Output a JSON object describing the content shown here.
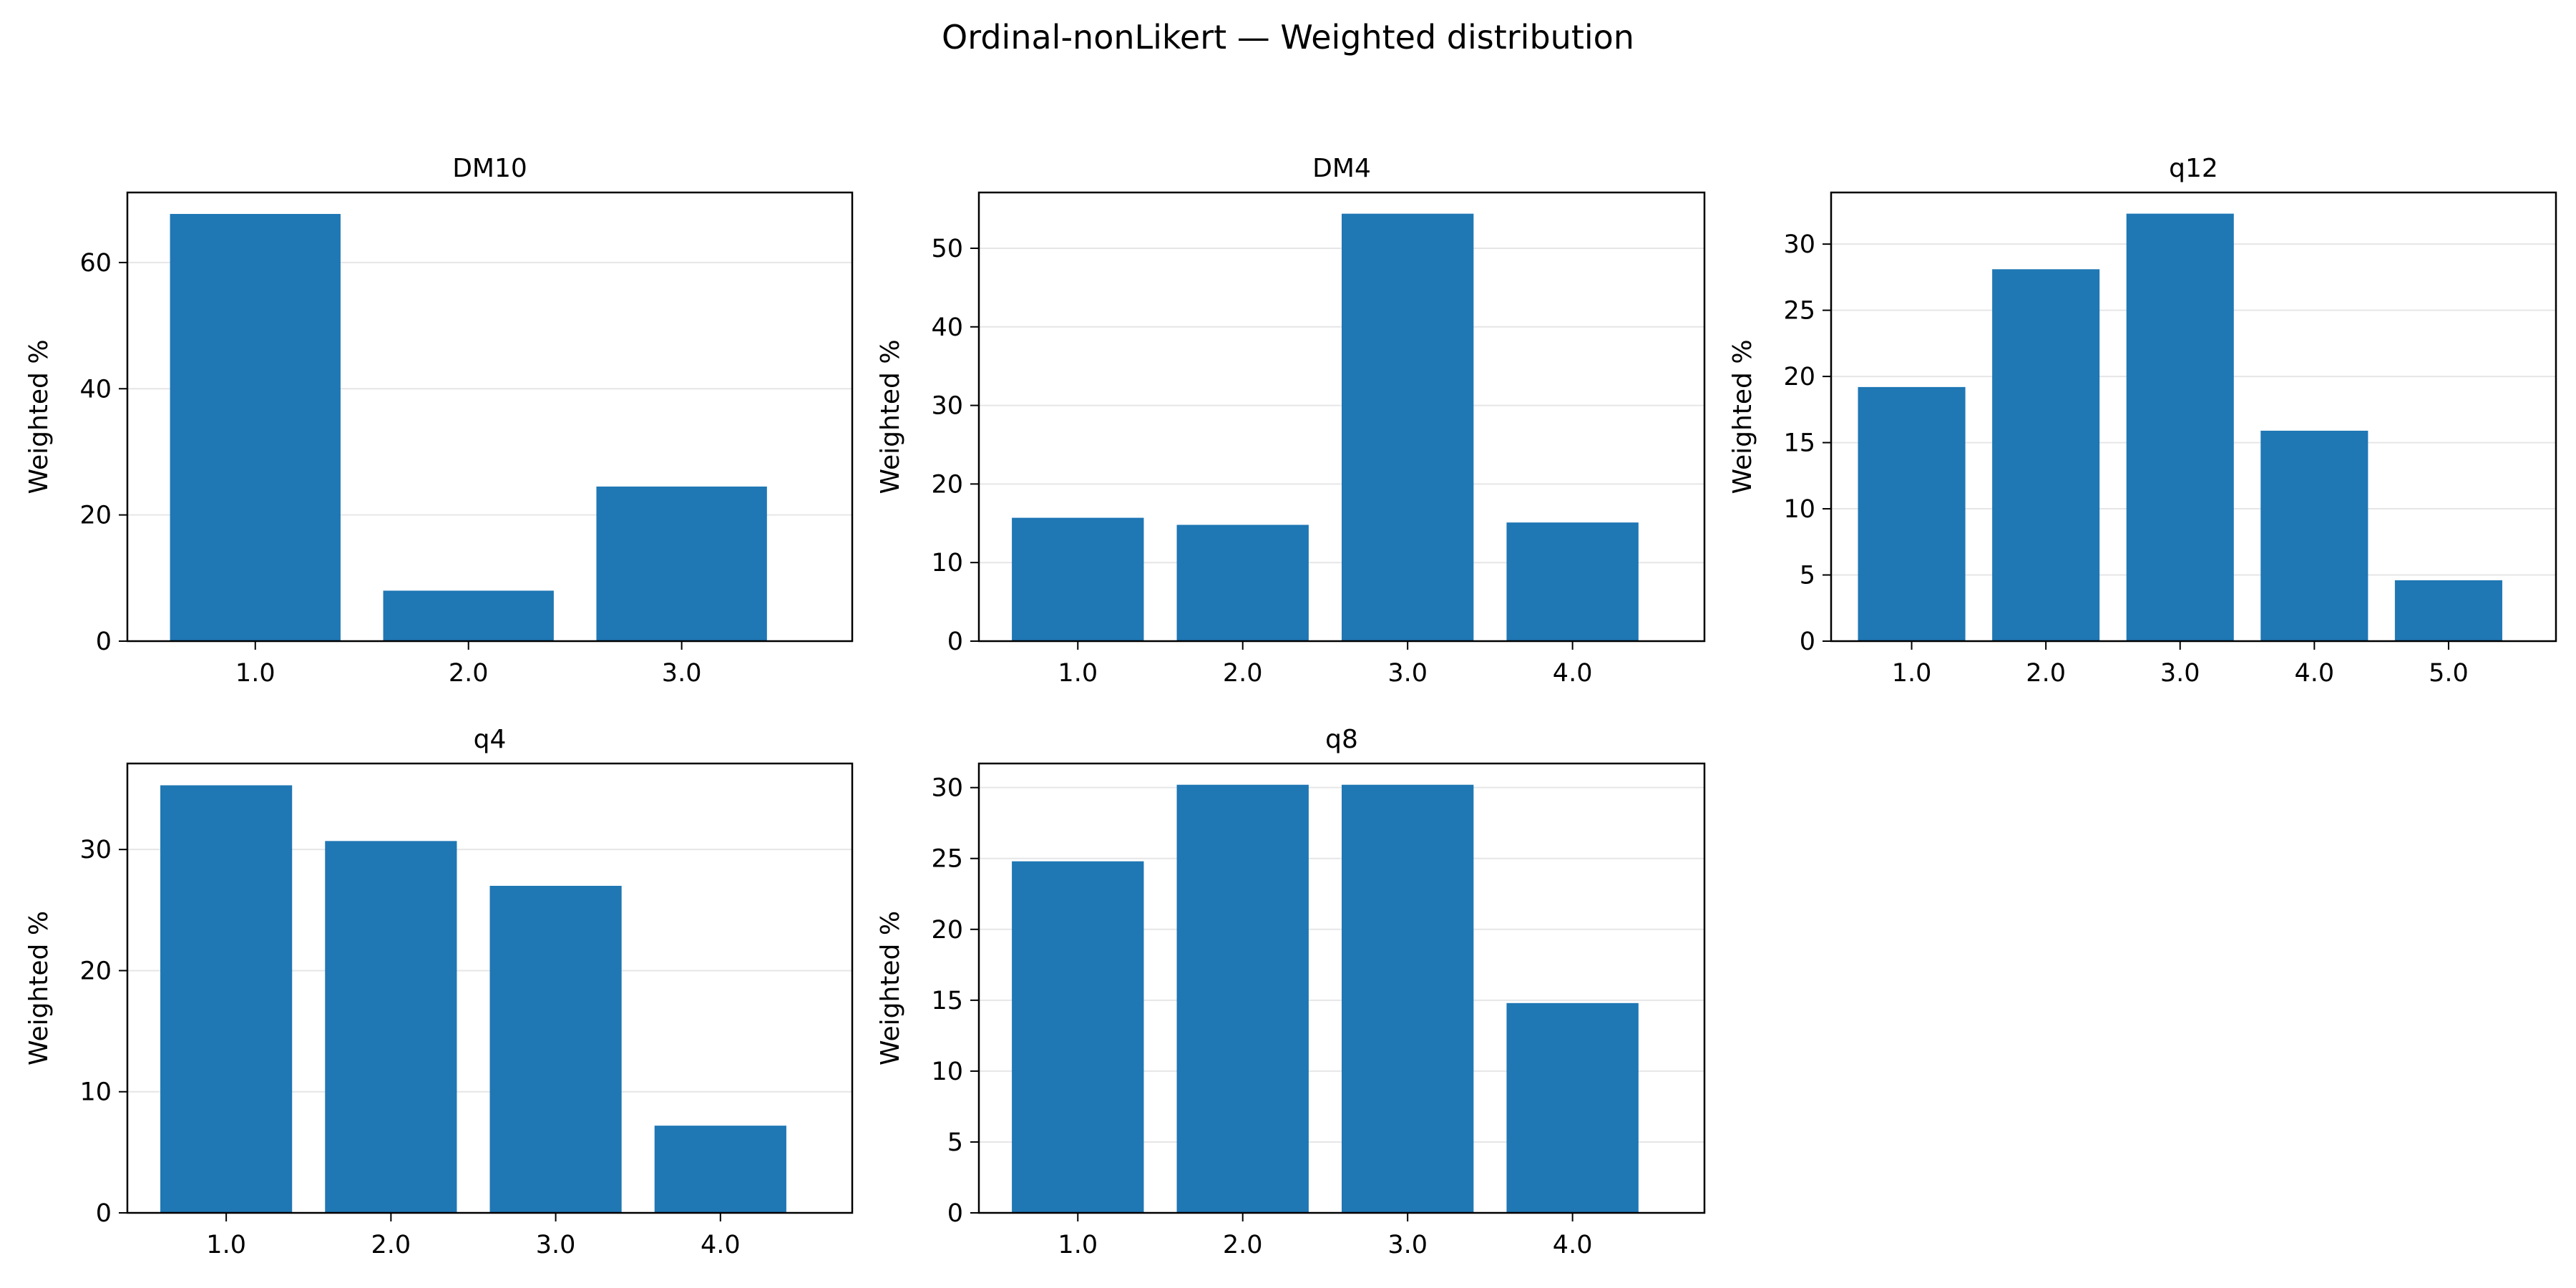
{
  "figure": {
    "title": "Ordinal-nonLikert — Weighted distribution",
    "bar_color": "#1f77b4",
    "grid_color": "#e6e6e6"
  },
  "chart_data": [
    {
      "type": "bar",
      "title": "DM10",
      "xlabel": "",
      "ylabel": "Weighted %",
      "categories": [
        "1.0",
        "2.0",
        "3.0"
      ],
      "values": [
        67.7,
        8.0,
        24.5
      ],
      "ylim": [
        0,
        71.1
      ],
      "yticks": [
        0,
        20,
        40,
        60
      ],
      "grid": true
    },
    {
      "type": "bar",
      "title": "DM4",
      "xlabel": "",
      "ylabel": "Weighted %",
      "categories": [
        "1.0",
        "2.0",
        "3.0",
        "4.0"
      ],
      "values": [
        15.7,
        14.8,
        54.4,
        15.1
      ],
      "ylim": [
        0,
        57.1
      ],
      "yticks": [
        0,
        10,
        20,
        30,
        40,
        50
      ],
      "grid": true
    },
    {
      "type": "bar",
      "title": "q12",
      "xlabel": "",
      "ylabel": "Weighted %",
      "categories": [
        "1.0",
        "2.0",
        "3.0",
        "4.0",
        "5.0"
      ],
      "values": [
        19.2,
        28.1,
        32.3,
        15.9,
        4.6
      ],
      "ylim": [
        0,
        33.9
      ],
      "yticks": [
        0,
        5,
        10,
        15,
        20,
        25,
        30
      ],
      "grid": true
    },
    {
      "type": "bar",
      "title": "q4",
      "xlabel": "",
      "ylabel": "Weighted %",
      "categories": [
        "1.0",
        "2.0",
        "3.0",
        "4.0"
      ],
      "values": [
        35.3,
        30.7,
        27.0,
        7.2
      ],
      "ylim": [
        0,
        37.1
      ],
      "yticks": [
        0,
        10,
        20,
        30
      ],
      "grid": true
    },
    {
      "type": "bar",
      "title": "q8",
      "xlabel": "",
      "ylabel": "Weighted %",
      "categories": [
        "1.0",
        "2.0",
        "3.0",
        "4.0"
      ],
      "values": [
        24.8,
        30.2,
        30.2,
        14.8
      ],
      "ylim": [
        0,
        31.7
      ],
      "yticks": [
        0,
        5,
        10,
        15,
        20,
        25,
        30
      ],
      "grid": true
    }
  ]
}
